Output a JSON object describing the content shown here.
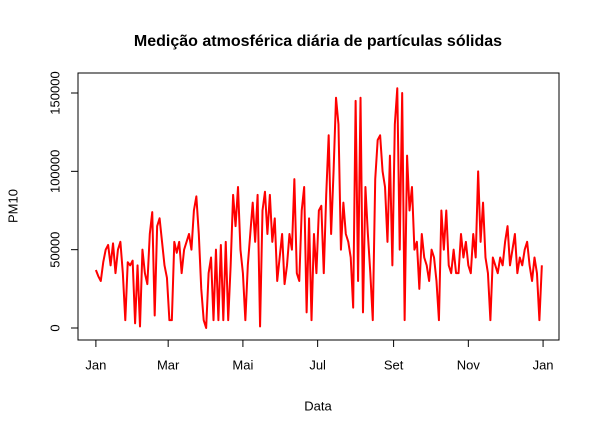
{
  "chart_data": {
    "type": "line",
    "title": "Medição atmosférica diária de partículas sólidas",
    "xlabel": "Data",
    "ylabel": "PM10",
    "xlim": [
      -14.6,
      378
    ],
    "ylim": [
      -7660,
      162770
    ],
    "xticks": [
      {
        "value": 0,
        "label": "Jan"
      },
      {
        "value": 59,
        "label": "Mar"
      },
      {
        "value": 120,
        "label": "Mai"
      },
      {
        "value": 181,
        "label": "Jul"
      },
      {
        "value": 243,
        "label": "Set"
      },
      {
        "value": 304,
        "label": "Nov"
      },
      {
        "value": 365,
        "label": "Jan"
      }
    ],
    "yticks": [
      0,
      50000,
      100000,
      150000
    ],
    "grid": false,
    "x": [
      0,
      2,
      4,
      6,
      8,
      10,
      12,
      14,
      16,
      18,
      20,
      22,
      24,
      26,
      28,
      30,
      32,
      34,
      36,
      38,
      40,
      42,
      44,
      46,
      48,
      50,
      52,
      54,
      56,
      58,
      60,
      62,
      64,
      66,
      68,
      70,
      72,
      74,
      76,
      78,
      80,
      82,
      84,
      86,
      88,
      90,
      92,
      94,
      96,
      98,
      100,
      102,
      104,
      106,
      108,
      110,
      112,
      114,
      116,
      118,
      120,
      122,
      124,
      126,
      128,
      130,
      132,
      134,
      136,
      138,
      140,
      142,
      144,
      146,
      148,
      150,
      152,
      154,
      156,
      158,
      160,
      162,
      164,
      166,
      168,
      170,
      172,
      174,
      176,
      178,
      180,
      182,
      184,
      186,
      188,
      190,
      192,
      194,
      196,
      198,
      200,
      202,
      204,
      206,
      208,
      210,
      212,
      214,
      216,
      218,
      220,
      222,
      224,
      226,
      228,
      230,
      232,
      234,
      236,
      238,
      240,
      242,
      244,
      246,
      248,
      250,
      252,
      254,
      256,
      258,
      260,
      262,
      264,
      266,
      268,
      270,
      272,
      274,
      276,
      278,
      280,
      282,
      284,
      286,
      288,
      290,
      292,
      294,
      296,
      298,
      300,
      302,
      304,
      306,
      308,
      310,
      312,
      314,
      316,
      318,
      320,
      322,
      324,
      326,
      328,
      330,
      332,
      334,
      336,
      338,
      340,
      342,
      344,
      346,
      348,
      350,
      352,
      354,
      356,
      358,
      360,
      362,
      364
    ],
    "series": [
      {
        "name": "PM10",
        "color": "#ff0000",
        "values": [
          37000,
          33000,
          30000,
          42000,
          50000,
          53000,
          40000,
          54000,
          35000,
          50000,
          55000,
          35000,
          5000,
          42000,
          40000,
          43000,
          3000,
          40000,
          1000,
          50000,
          35000,
          28000,
          60000,
          74000,
          8000,
          65000,
          70000,
          55000,
          40000,
          32000,
          5000,
          5000,
          55000,
          48000,
          55000,
          35000,
          50000,
          55000,
          60000,
          50000,
          75000,
          84000,
          60000,
          25000,
          5000,
          0,
          35000,
          45000,
          5000,
          50000,
          5000,
          53000,
          5000,
          55000,
          5000,
          40000,
          85000,
          65000,
          90000,
          50000,
          35000,
          5000,
          40000,
          60000,
          80000,
          55000,
          85000,
          1000,
          75000,
          87000,
          60000,
          85000,
          55000,
          70000,
          30000,
          45000,
          60000,
          28000,
          40000,
          60000,
          50000,
          95000,
          35000,
          30000,
          75000,
          90000,
          10000,
          70000,
          5000,
          60000,
          35000,
          75000,
          78000,
          35000,
          85000,
          123000,
          60000,
          100000,
          147000,
          130000,
          50000,
          80000,
          60000,
          55000,
          45000,
          13000,
          145000,
          30000,
          147000,
          10000,
          90000,
          60000,
          35000,
          5000,
          95000,
          120000,
          123000,
          100000,
          90000,
          55000,
          110000,
          40000,
          130000,
          153000,
          50000,
          150000,
          5000,
          110000,
          75000,
          90000,
          50000,
          55000,
          25000,
          60000,
          45000,
          40000,
          30000,
          50000,
          45000,
          30000,
          5000,
          75000,
          50000,
          75000,
          40000,
          35000,
          50000,
          35000,
          35000,
          60000,
          45000,
          55000,
          40000,
          35000,
          60000,
          45000,
          100000,
          55000,
          80000,
          45000,
          35000,
          5000,
          45000,
          40000,
          35000,
          45000,
          40000,
          55000,
          65000,
          40000,
          50000,
          60000,
          35000,
          45000,
          40000,
          50000,
          55000,
          40000,
          30000,
          45000,
          35000,
          5000,
          40000
        ]
      }
    ]
  }
}
